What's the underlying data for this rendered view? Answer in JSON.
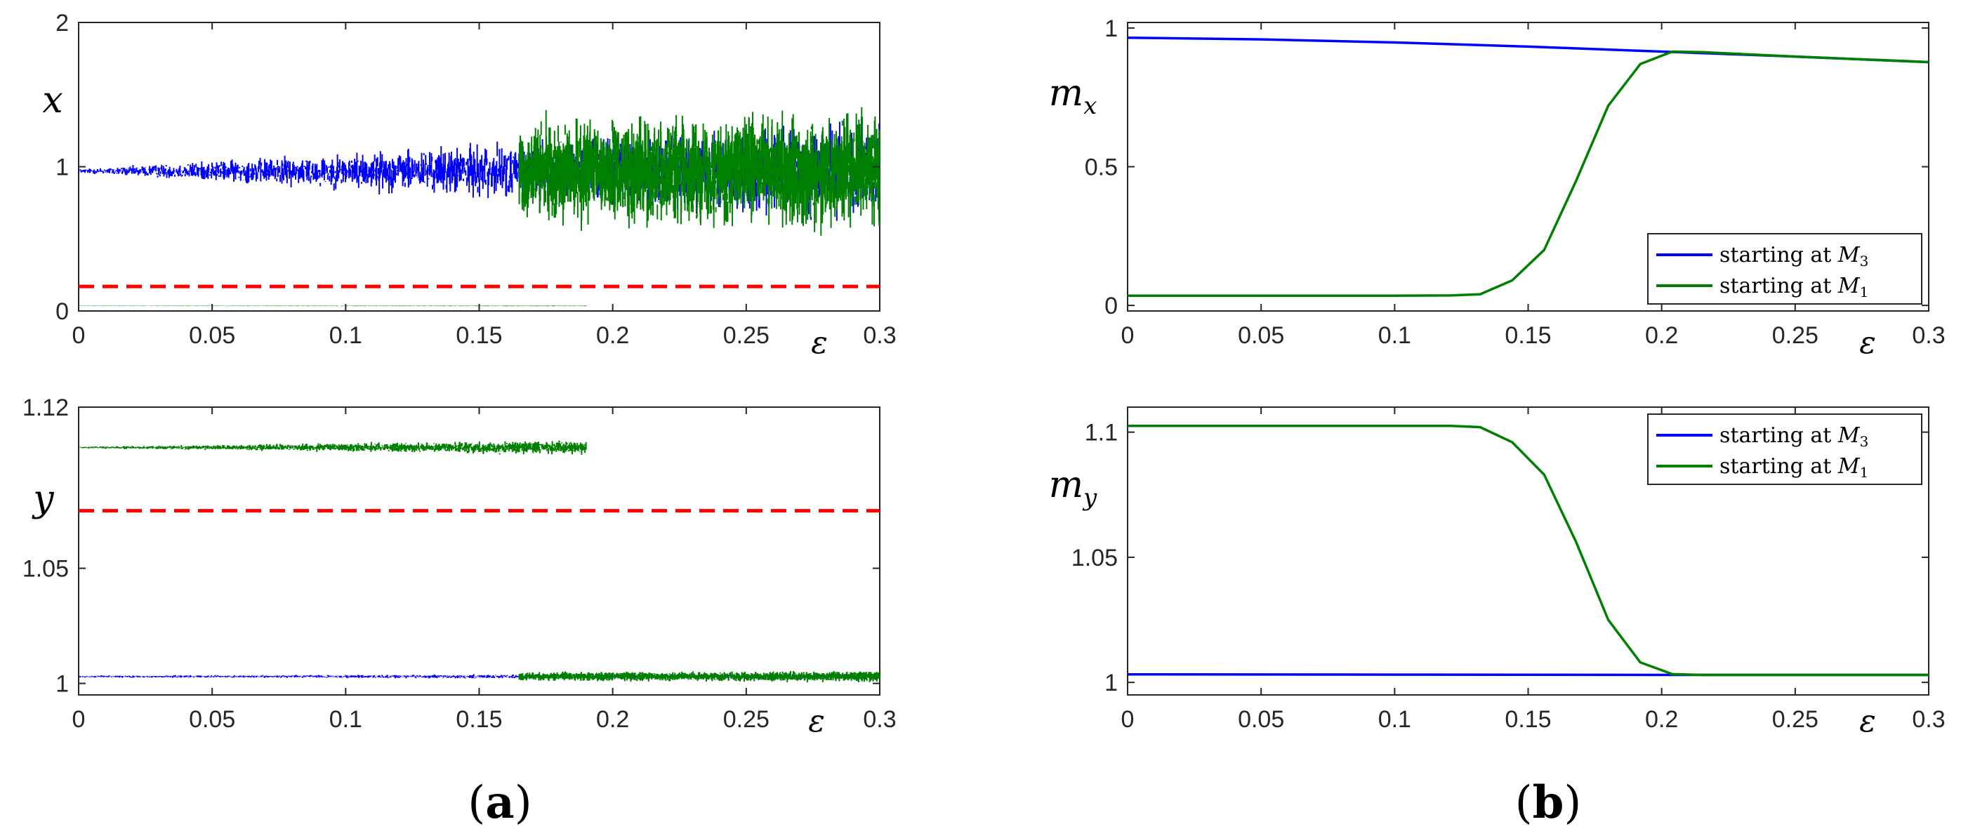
{
  "captions": {
    "a": "a",
    "b": "b"
  },
  "colors": {
    "blue": "#0000ff",
    "green": "#008000",
    "red": "#ff0000",
    "axis": "#262626"
  },
  "chart_data": [
    {
      "id": "a-top",
      "type": "scatter",
      "description_visible": "bifurcation-like scatter",
      "ylabel": "x",
      "xlabel": "ε",
      "xlim": [
        0,
        0.3
      ],
      "ylim": [
        0,
        2
      ],
      "xticks": [
        0,
        0.05,
        0.1,
        0.15,
        0.2,
        0.25,
        0.3
      ],
      "xtick_labels": [
        "0",
        "0.05",
        "0.1",
        "0.15",
        "0.2",
        "0.25",
        "0.3"
      ],
      "yticks": [
        0,
        1,
        2
      ],
      "ytick_labels": [
        "0",
        "1",
        "2"
      ],
      "threshold": 0.17,
      "series": [
        {
          "color": "blue",
          "center": 0.97,
          "spread_start": 0.02,
          "spread_end": 0.45,
          "x_from": 0,
          "x_to": 0.3
        },
        {
          "color": "green",
          "center": 0.97,
          "spread_start": 0.35,
          "spread_end": 0.5,
          "x_from": 0.165,
          "x_to": 0.3
        },
        {
          "color": "green",
          "center": 0.035,
          "spread_start": 0.002,
          "spread_end": 0.004,
          "x_from": 0,
          "x_to": 0.19
        }
      ]
    },
    {
      "id": "a-bottom",
      "type": "scatter",
      "ylabel": "y",
      "xlabel": "ε",
      "xlim": [
        0,
        0.3
      ],
      "ylim": [
        0.995,
        1.12
      ],
      "xticks": [
        0,
        0.05,
        0.1,
        0.15,
        0.2,
        0.25,
        0.3
      ],
      "xtick_labels": [
        "0",
        "0.05",
        "0.1",
        "0.15",
        "0.2",
        "0.25",
        "0.3"
      ],
      "yticks": [
        1,
        1.05,
        1.12
      ],
      "ytick_labels": [
        "1",
        "1.05",
        "1.12"
      ],
      "threshold": 1.075,
      "series": [
        {
          "color": "green",
          "center": 1.1025,
          "spread_start": 0.0005,
          "spread_end": 0.006,
          "x_from": 0,
          "x_to": 0.19
        },
        {
          "color": "blue",
          "center": 1.003,
          "spread_start": 0.0006,
          "spread_end": 0.0015,
          "x_from": 0,
          "x_to": 0.3
        },
        {
          "color": "green",
          "center": 1.003,
          "spread_start": 0.0015,
          "spread_end": 0.003,
          "x_from": 0.165,
          "x_to": 0.3
        }
      ]
    },
    {
      "id": "b-top",
      "type": "line",
      "ylabel": "m_x",
      "xlabel": "ε",
      "xlim": [
        0,
        0.3
      ],
      "ylim": [
        -0.02,
        1.02
      ],
      "xticks": [
        0,
        0.05,
        0.1,
        0.15,
        0.2,
        0.25,
        0.3
      ],
      "xtick_labels": [
        "0",
        "0.05",
        "0.1",
        "0.15",
        "0.2",
        "0.25",
        "0.3"
      ],
      "yticks": [
        0,
        0.5,
        1
      ],
      "ytick_labels": [
        "0",
        "0.5",
        "1"
      ],
      "legend": {
        "position": "bottom-right",
        "entries": [
          "starting at M3",
          "starting at M1"
        ]
      },
      "series": [
        {
          "name": "starting at M3",
          "color": "blue",
          "x": [
            0,
            0.05,
            0.1,
            0.15,
            0.2,
            0.25,
            0.3
          ],
          "y": [
            0.965,
            0.959,
            0.948,
            0.933,
            0.915,
            0.897,
            0.877
          ]
        },
        {
          "name": "starting at M1",
          "color": "green",
          "x": [
            0,
            0.05,
            0.1,
            0.121,
            0.132,
            0.144,
            0.156,
            0.168,
            0.18,
            0.192,
            0.204,
            0.215,
            0.25,
            0.3
          ],
          "y": [
            0.035,
            0.035,
            0.035,
            0.036,
            0.04,
            0.09,
            0.2,
            0.45,
            0.72,
            0.87,
            0.915,
            0.913,
            0.897,
            0.877
          ]
        }
      ]
    },
    {
      "id": "b-bottom",
      "type": "line",
      "ylabel": "m_y",
      "xlabel": "ε",
      "xlim": [
        0,
        0.3
      ],
      "ylim": [
        0.995,
        1.11
      ],
      "xticks": [
        0,
        0.05,
        0.1,
        0.15,
        0.2,
        0.25,
        0.3
      ],
      "xtick_labels": [
        "0",
        "0.05",
        "0.1",
        "0.15",
        "0.2",
        "0.25",
        "0.3"
      ],
      "yticks": [
        1,
        1.05,
        1.1
      ],
      "ytick_labels": [
        "1",
        "1.05",
        "1.1"
      ],
      "legend": {
        "position": "top-right",
        "entries": [
          "starting at M3",
          "starting at M1"
        ]
      },
      "series": [
        {
          "name": "starting at M3",
          "color": "blue",
          "x": [
            0,
            0.1,
            0.2,
            0.3
          ],
          "y": [
            1.0032,
            1.0031,
            1.003,
            1.003
          ]
        },
        {
          "name": "starting at M1",
          "color": "green",
          "x": [
            0,
            0.1,
            0.121,
            0.132,
            0.144,
            0.156,
            0.168,
            0.18,
            0.192,
            0.204,
            0.215,
            0.25,
            0.3
          ],
          "y": [
            1.1025,
            1.1025,
            1.1025,
            1.102,
            1.096,
            1.083,
            1.056,
            1.025,
            1.008,
            1.0033,
            1.003,
            1.003,
            1.003
          ]
        }
      ]
    }
  ]
}
